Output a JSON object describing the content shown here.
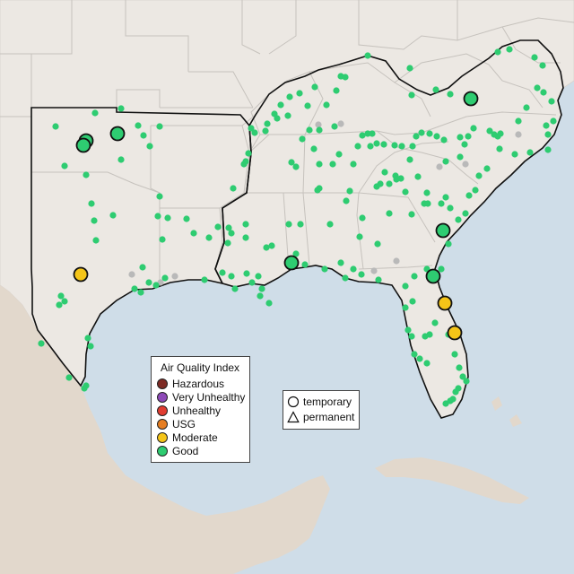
{
  "colors": {
    "ocean": "#cfdde8",
    "land": "#ece8e3",
    "land_south": "#e2d8cc",
    "state_border": "#c6c2bd",
    "region_border": "#111111",
    "monitor_missing": "#b9b9b9"
  },
  "legend": {
    "title": "Air Quality Index",
    "categories": [
      {
        "label": "Hazardous",
        "color": "#7e2b25"
      },
      {
        "label": "Very Unhealthy",
        "color": "#8e4ab8"
      },
      {
        "label": "Unhealthy",
        "color": "#e03c31"
      },
      {
        "label": "USG",
        "color": "#e67e22"
      },
      {
        "label": "Moderate",
        "color": "#f5c518"
      },
      {
        "label": "Good",
        "color": "#2ecc71"
      }
    ]
  },
  "site_types": [
    {
      "label": "temporary",
      "symbol": "circle-icon"
    },
    {
      "label": "permanent",
      "symbol": "triangle-icon"
    }
  ]
}
